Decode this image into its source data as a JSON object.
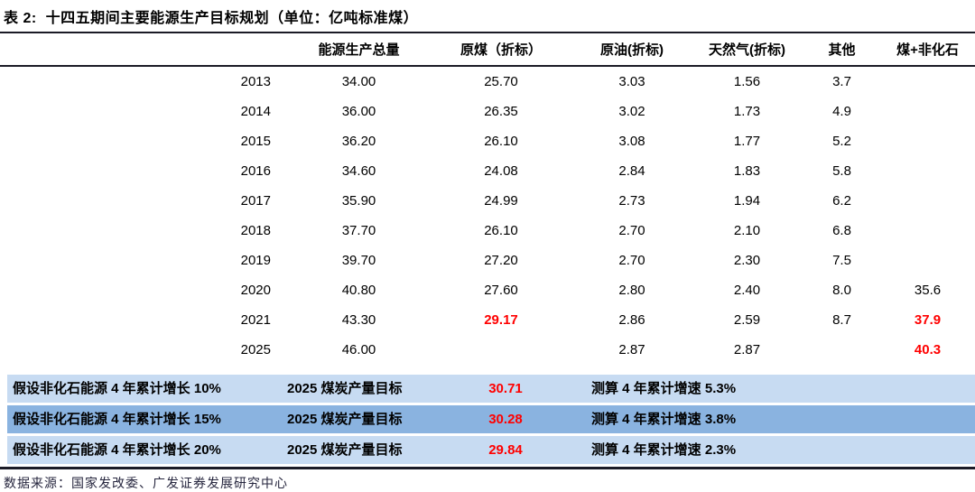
{
  "title": "表 2:  十四五期间主要能源生产目标规划（单位：亿吨标准煤）",
  "columns": [
    {
      "key": "year",
      "label": ""
    },
    {
      "key": "total",
      "label": "能源生产总量"
    },
    {
      "key": "coal",
      "label": "原煤（折标）"
    },
    {
      "key": "oil",
      "label": "原油(折标)"
    },
    {
      "key": "gas",
      "label": "天然气(折标)"
    },
    {
      "key": "other",
      "label": "其他"
    },
    {
      "key": "coal_nonfossil",
      "label": "煤+非化石"
    }
  ],
  "rows": [
    {
      "year": "2013",
      "total": "34.00",
      "coal": "25.70",
      "oil": "3.03",
      "gas": "1.56",
      "other": "3.7",
      "coal_nonfossil": "",
      "red_fields": []
    },
    {
      "year": "2014",
      "total": "36.00",
      "coal": "26.35",
      "oil": "3.02",
      "gas": "1.73",
      "other": "4.9",
      "coal_nonfossil": "",
      "red_fields": []
    },
    {
      "year": "2015",
      "total": "36.20",
      "coal": "26.10",
      "oil": "3.08",
      "gas": "1.77",
      "other": "5.2",
      "coal_nonfossil": "",
      "red_fields": []
    },
    {
      "year": "2016",
      "total": "34.60",
      "coal": "24.08",
      "oil": "2.84",
      "gas": "1.83",
      "other": "5.8",
      "coal_nonfossil": "",
      "red_fields": []
    },
    {
      "year": "2017",
      "total": "35.90",
      "coal": "24.99",
      "oil": "2.73",
      "gas": "1.94",
      "other": "6.2",
      "coal_nonfossil": "",
      "red_fields": []
    },
    {
      "year": "2018",
      "total": "37.70",
      "coal": "26.10",
      "oil": "2.70",
      "gas": "2.10",
      "other": "6.8",
      "coal_nonfossil": "",
      "red_fields": []
    },
    {
      "year": "2019",
      "total": "39.70",
      "coal": "27.20",
      "oil": "2.70",
      "gas": "2.30",
      "other": "7.5",
      "coal_nonfossil": "",
      "red_fields": []
    },
    {
      "year": "2020",
      "total": "40.80",
      "coal": "27.60",
      "oil": "2.80",
      "gas": "2.40",
      "other": "8.0",
      "coal_nonfossil": "35.6",
      "red_fields": []
    },
    {
      "year": "2021",
      "total": "43.30",
      "coal": "29.17",
      "oil": "2.86",
      "gas": "2.59",
      "other": "8.7",
      "coal_nonfossil": "37.9",
      "red_fields": [
        "coal",
        "coal_nonfossil"
      ]
    },
    {
      "year": "2025",
      "total": "46.00",
      "coal": "",
      "oil": "2.87",
      "gas": "2.87",
      "other": "",
      "coal_nonfossil": "40.3",
      "red_fields": [
        "coal_nonfossil"
      ]
    }
  ],
  "scenarios": [
    {
      "assumption": "假设非化石能源 4 年累计增长 10%",
      "target": "2025 煤炭产量目标",
      "value": "30.71",
      "growth": "测算 4 年累计增速 5.3%",
      "shade": "light"
    },
    {
      "assumption": "假设非化石能源 4 年累计增长 15%",
      "target": "2025 煤炭产量目标",
      "value": "30.28",
      "growth": "测算 4 年累计增速 3.8%",
      "shade": "medium"
    },
    {
      "assumption": "假设非化石能源 4 年累计增长 20%",
      "target": "2025 煤炭产量目标",
      "value": "29.84",
      "growth": "测算 4 年累计增速 2.3%",
      "shade": "light"
    }
  ],
  "footer": "数据来源：国家发改委、广发证券发展研究中心",
  "colors": {
    "highlight_red": "#ff0000",
    "row_light_blue": "#c7dbf2",
    "row_medium_blue": "#8ab3e0",
    "rule_dark": "#1b1b26"
  }
}
